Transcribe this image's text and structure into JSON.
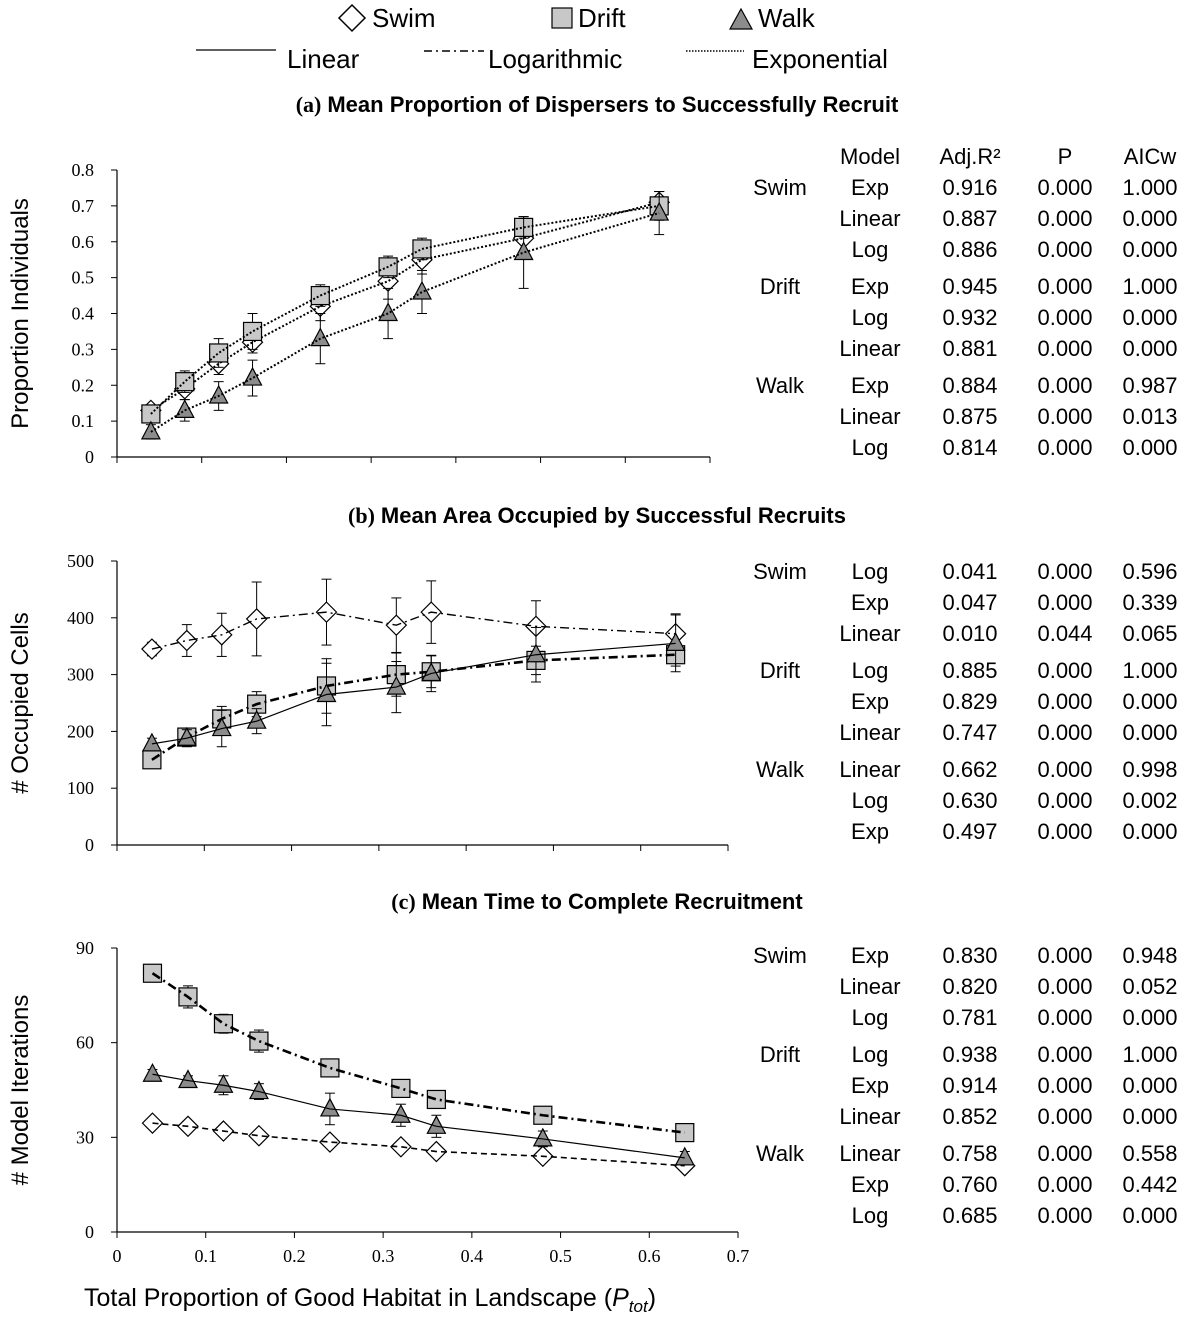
{
  "legend": {
    "markers": [
      {
        "name": "Swim",
        "marker": "diamond-open"
      },
      {
        "name": "Drift",
        "marker": "square-gray"
      },
      {
        "name": "Walk",
        "marker": "triangle-gray"
      }
    ],
    "lines": [
      {
        "name": "Linear",
        "style": "solid"
      },
      {
        "name": "Logarithmic",
        "style": "dash-dot"
      },
      {
        "name": "Exponential",
        "style": "dotted"
      }
    ]
  },
  "colors": {
    "marker_fill_gray": "#c8c8c8",
    "triangle_fill": "#8c8c8c",
    "line": "#000000"
  },
  "xlabel_main": "Total Proportion of Good Habitat in Landscape (",
  "xlabel_sym": "P",
  "xlabel_sub": "tot",
  "xlabel_close": ")",
  "table_headers": [
    "Model",
    "Adj.R²",
    "P",
    "AICw"
  ],
  "chart_data": [
    {
      "type": "scatter",
      "letter": "(a)",
      "title": "Mean Proportion of Dispersers to Successfully Recruit",
      "ylabel": "Proportion Individuals",
      "xlim": [
        0,
        0.7
      ],
      "ylim": [
        0,
        0.8
      ],
      "yticks": [
        "0",
        "0.1",
        "0.2",
        "0.3",
        "0.4",
        "0.5",
        "0.6",
        "0.7",
        "0.8"
      ],
      "x": [
        0.04,
        0.08,
        0.12,
        0.16,
        0.24,
        0.32,
        0.36,
        0.48,
        0.64
      ],
      "series": [
        {
          "name": "Swim",
          "marker": "diamond",
          "line": "dotted",
          "values": [
            0.13,
            0.19,
            0.26,
            0.32,
            0.42,
            0.49,
            0.55,
            0.61,
            0.71
          ],
          "err": [
            0.01,
            0.03,
            0.03,
            0.03,
            0.04,
            0.05,
            0.04,
            0.04,
            0.03
          ]
        },
        {
          "name": "Drift",
          "marker": "square",
          "line": "dotted",
          "values": [
            0.12,
            0.21,
            0.29,
            0.35,
            0.45,
            0.53,
            0.58,
            0.64,
            0.7
          ],
          "err": [
            0.02,
            0.03,
            0.04,
            0.05,
            0.03,
            0.03,
            0.03,
            0.03,
            0.04
          ]
        },
        {
          "name": "Walk",
          "marker": "triangle",
          "line": "dotted",
          "values": [
            0.07,
            0.13,
            0.17,
            0.22,
            0.33,
            0.4,
            0.46,
            0.57,
            0.68
          ],
          "err": [
            0.02,
            0.03,
            0.04,
            0.05,
            0.07,
            0.07,
            0.06,
            0.1,
            0.06
          ]
        }
      ],
      "stats": [
        {
          "group": "Swim",
          "rows": [
            [
              "Exp",
              "0.916",
              "0.000",
              "1.000"
            ],
            [
              "Linear",
              "0.887",
              "0.000",
              "0.000"
            ],
            [
              "Log",
              "0.886",
              "0.000",
              "0.000"
            ]
          ]
        },
        {
          "group": "Drift",
          "rows": [
            [
              "Exp",
              "0.945",
              "0.000",
              "1.000"
            ],
            [
              "Log",
              "0.932",
              "0.000",
              "0.000"
            ],
            [
              "Linear",
              "0.881",
              "0.000",
              "0.000"
            ]
          ]
        },
        {
          "group": "Walk",
          "rows": [
            [
              "Exp",
              "0.884",
              "0.000",
              "0.987"
            ],
            [
              "Linear",
              "0.875",
              "0.000",
              "0.013"
            ],
            [
              "Log",
              "0.814",
              "0.000",
              "0.000"
            ]
          ]
        }
      ]
    },
    {
      "type": "scatter",
      "letter": "(b)",
      "title": "Mean Area Occupied by Successful Recruits",
      "ylabel": "# Occupied Cells",
      "xlim": [
        0,
        0.7
      ],
      "ylim": [
        0,
        500
      ],
      "yticks": [
        "0",
        "100",
        "200",
        "300",
        "400",
        "500"
      ],
      "x": [
        0.04,
        0.08,
        0.12,
        0.16,
        0.24,
        0.32,
        0.36,
        0.48,
        0.64
      ],
      "series": [
        {
          "name": "Swim",
          "marker": "diamond",
          "line": "dash-dot",
          "values": [
            345,
            360,
            370,
            398,
            410,
            387,
            410,
            385,
            372
          ],
          "err": [
            12,
            28,
            38,
            65,
            58,
            48,
            55,
            45,
            35
          ]
        },
        {
          "name": "Drift",
          "marker": "square",
          "line": "dash-dot-bold",
          "values": [
            150,
            190,
            222,
            248,
            280,
            300,
            305,
            325,
            335
          ],
          "err": [
            10,
            15,
            22,
            22,
            48,
            38,
            28,
            25,
            20
          ]
        },
        {
          "name": "Walk",
          "marker": "triangle",
          "line": "solid",
          "values": [
            178,
            188,
            205,
            218,
            265,
            278,
            302,
            335,
            355
          ],
          "err": [
            10,
            15,
            32,
            22,
            55,
            45,
            32,
            48,
            50
          ]
        }
      ],
      "stats": [
        {
          "group": "Swim",
          "rows": [
            [
              "Log",
              "0.041",
              "0.000",
              "0.596"
            ],
            [
              "Exp",
              "0.047",
              "0.000",
              "0.339"
            ],
            [
              "Linear",
              "0.010",
              "0.044",
              "0.065"
            ]
          ]
        },
        {
          "group": "Drift",
          "rows": [
            [
              "Log",
              "0.885",
              "0.000",
              "1.000"
            ],
            [
              "Exp",
              "0.829",
              "0.000",
              "0.000"
            ],
            [
              "Linear",
              "0.747",
              "0.000",
              "0.000"
            ]
          ]
        },
        {
          "group": "Walk",
          "rows": [
            [
              "Linear",
              "0.662",
              "0.000",
              "0.998"
            ],
            [
              "Log",
              "0.630",
              "0.000",
              "0.002"
            ],
            [
              "Exp",
              "0.497",
              "0.000",
              "0.000"
            ]
          ]
        }
      ]
    },
    {
      "type": "scatter",
      "letter": "(c)",
      "title": "Mean Time to Complete Recruitment",
      "ylabel": "# Model Iterations",
      "xlim": [
        0,
        0.7
      ],
      "ylim": [
        0,
        90
      ],
      "yticks": [
        "0",
        "30",
        "60",
        "90"
      ],
      "xticks": [
        "0",
        "0.1",
        "0.2",
        "0.3",
        "0.4",
        "0.5",
        "0.6",
        "0.7"
      ],
      "x": [
        0.04,
        0.08,
        0.12,
        0.16,
        0.24,
        0.32,
        0.36,
        0.48,
        0.64
      ],
      "series": [
        {
          "name": "Swim",
          "marker": "diamond",
          "line": "dashed",
          "values": [
            34.5,
            33.5,
            32,
            30.5,
            28.5,
            27,
            25.5,
            24,
            21
          ],
          "err": [
            1,
            1,
            1,
            1,
            1,
            1.2,
            1.2,
            1.5,
            1.2
          ]
        },
        {
          "name": "Drift",
          "marker": "square",
          "line": "dash-dot-bold",
          "values": [
            82,
            74.5,
            66,
            60.5,
            52,
            45.5,
            42,
            37,
            31.5
          ],
          "err": [
            2,
            3.5,
            3,
            3.5,
            2,
            2,
            2,
            2,
            2
          ]
        },
        {
          "name": "Walk",
          "marker": "triangle",
          "line": "solid",
          "values": [
            50,
            48,
            46.5,
            44.5,
            39,
            37,
            33.5,
            29.5,
            23.5
          ],
          "err": [
            1.5,
            1.5,
            3,
            2.5,
            5,
            3.5,
            3.5,
            2.5,
            2
          ]
        }
      ],
      "stats": [
        {
          "group": "Swim",
          "rows": [
            [
              "Exp",
              "0.830",
              "0.000",
              "0.948"
            ],
            [
              "Linear",
              "0.820",
              "0.000",
              "0.052"
            ],
            [
              "Log",
              "0.781",
              "0.000",
              "0.000"
            ]
          ]
        },
        {
          "group": "Drift",
          "rows": [
            [
              "Log",
              "0.938",
              "0.000",
              "1.000"
            ],
            [
              "Exp",
              "0.914",
              "0.000",
              "0.000"
            ],
            [
              "Linear",
              "0.852",
              "0.000",
              "0.000"
            ]
          ]
        },
        {
          "group": "Walk",
          "rows": [
            [
              "Linear",
              "0.758",
              "0.000",
              "0.558"
            ],
            [
              "Exp",
              "0.760",
              "0.000",
              "0.442"
            ],
            [
              "Log",
              "0.685",
              "0.000",
              "0.000"
            ]
          ]
        }
      ]
    }
  ]
}
